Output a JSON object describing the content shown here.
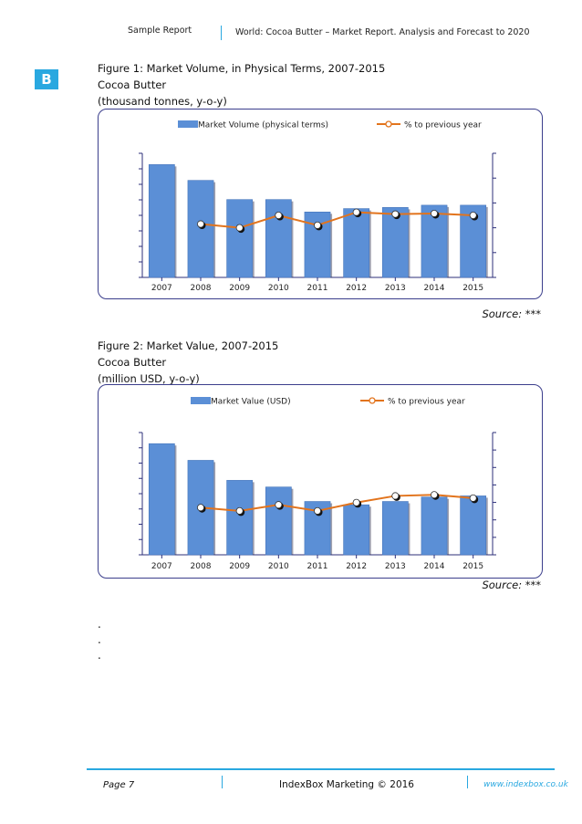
{
  "header": {
    "left": "Sample Report",
    "right": "World: Cocoa Butter – Market Report. Analysis and Forecast to 2020"
  },
  "badge": "B",
  "figures": [
    {
      "title": "Figure 1: Market Volume, in Physical Terms, 2007-2015",
      "product": "Cocoa Butter",
      "units": "(thousand tonnes, y-o-y)",
      "source": "Source: ***"
    },
    {
      "title": "Figure 2: Market Value, 2007-2015",
      "product": "Cocoa Butter",
      "units": "(million USD, y-o-y)",
      "source": "Source: ***"
    }
  ],
  "chart_data": [
    {
      "type": "bar",
      "categories": [
        "2007",
        "2008",
        "2009",
        "2010",
        "2011",
        "2012",
        "2013",
        "2014",
        "2015"
      ],
      "series": [
        {
          "name": "Market Volume (physical terms)",
          "kind": "bar",
          "axis": "left",
          "values": [
            100,
            86,
            69,
            69,
            58,
            61,
            62,
            64,
            64
          ]
        },
        {
          "name": "% to previous year",
          "kind": "line",
          "axis": "right",
          "values": [
            null,
            86,
            80,
            100,
            84,
            105,
            102,
            103,
            100
          ]
        }
      ],
      "ylim_left": [
        0,
        110
      ],
      "ylim_right": [
        0,
        200
      ],
      "legend": "top",
      "colors": {
        "bar": "#5b8fd6",
        "line": "#e2741d"
      }
    },
    {
      "type": "bar",
      "categories": [
        "2007",
        "2008",
        "2009",
        "2010",
        "2011",
        "2012",
        "2013",
        "2014",
        "2015"
      ],
      "series": [
        {
          "name": "Market Value (USD)",
          "kind": "bar",
          "axis": "left",
          "values": [
            100,
            85,
            67,
            61,
            48,
            45,
            48,
            52,
            53
          ]
        },
        {
          "name": "% to previous year",
          "kind": "line",
          "axis": "right",
          "values": [
            null,
            85,
            79,
            90,
            79,
            94,
            106,
            108,
            102
          ]
        }
      ],
      "ylim_left": [
        0,
        110
      ],
      "ylim_right": [
        0,
        220
      ],
      "legend": "top",
      "colors": {
        "bar": "#5b8fd6",
        "line": "#e2741d"
      }
    }
  ],
  "ellipsis": [
    ".",
    ".",
    "."
  ],
  "footer": {
    "page": "Page 7",
    "center": "IndexBox Marketing © 2016",
    "url": "www.indexbox.co.uk"
  }
}
